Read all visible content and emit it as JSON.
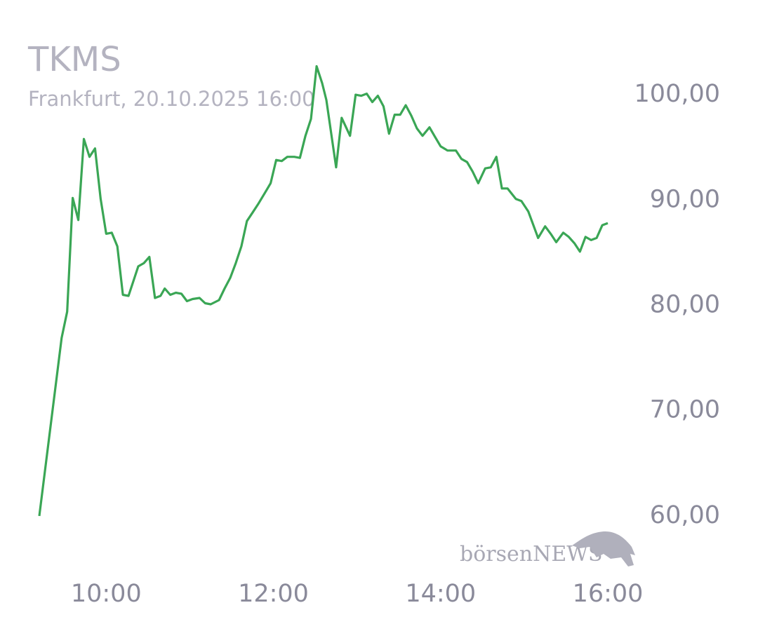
{
  "chart_data": {
    "type": "line",
    "title": "TKMS",
    "subtitle": "Frankfurt, 20.10.2025 16:00",
    "watermark": "börsenNEWS",
    "color": "#3aa655",
    "x": [
      "09:12",
      "09:28",
      "09:32",
      "09:36",
      "09:40",
      "09:44",
      "09:48",
      "09:52",
      "09:56",
      "10:00",
      "10:04",
      "10:08",
      "10:12",
      "10:16",
      "10:23",
      "10:27",
      "10:31",
      "10:35",
      "10:39",
      "10:42",
      "10:46",
      "10:50",
      "10:54",
      "10:58",
      "11:02",
      "11:07",
      "11:11",
      "11:15",
      "11:21",
      "11:25",
      "11:29",
      "11:33",
      "11:37",
      "11:41",
      "11:45",
      "11:49",
      "11:54",
      "11:58",
      "12:02",
      "12:06",
      "12:10",
      "12:15",
      "12:19",
      "12:23",
      "12:27",
      "12:31",
      "12:35",
      "12:38",
      "12:45",
      "12:49",
      "12:55",
      "12:59",
      "13:03",
      "13:07",
      "13:11",
      "13:15",
      "13:19",
      "13:23",
      "13:27",
      "13:31",
      "13:35",
      "13:39",
      "13:43",
      "13:47",
      "13:52",
      "13:56",
      "14:00",
      "14:05",
      "14:11",
      "14:15",
      "14:19",
      "14:23",
      "14:27",
      "14:32",
      "14:36",
      "14:40",
      "14:44",
      "14:48",
      "14:54",
      "14:58",
      "15:03",
      "15:10",
      "15:15",
      "15:19",
      "15:23",
      "15:28",
      "15:32",
      "15:36",
      "15:40",
      "15:44",
      "15:48",
      "15:52",
      "15:56",
      "16:00"
    ],
    "values": [
      60.0,
      76.9,
      79.4,
      90.2,
      88.1,
      95.8,
      94.1,
      94.9,
      90.1,
      86.8,
      86.9,
      85.6,
      81.0,
      80.9,
      83.7,
      84.0,
      84.6,
      80.7,
      80.9,
      81.6,
      81.0,
      81.2,
      81.1,
      80.4,
      80.6,
      80.7,
      80.2,
      80.1,
      80.5,
      81.6,
      82.6,
      84.0,
      85.6,
      88.0,
      88.8,
      89.6,
      90.7,
      91.6,
      93.8,
      93.7,
      94.1,
      94.1,
      94.0,
      96.1,
      97.7,
      102.7,
      101.1,
      99.5,
      93.1,
      97.8,
      96.1,
      100.0,
      99.9,
      100.1,
      99.3,
      99.9,
      98.9,
      96.3,
      98.1,
      98.1,
      99.0,
      98.0,
      96.8,
      96.1,
      96.9,
      96.0,
      95.1,
      94.7,
      94.7,
      93.9,
      93.6,
      92.7,
      91.6,
      93.0,
      93.1,
      94.1,
      91.1,
      91.1,
      90.1,
      89.9,
      88.9,
      86.4,
      87.5,
      86.8,
      86.0,
      86.9,
      86.5,
      85.9,
      85.1,
      86.5,
      86.2,
      86.4,
      87.6,
      87.8
    ],
    "xlim": [
      "09:12",
      "16:00"
    ],
    "xticks": [
      "10:00",
      "12:00",
      "14:00",
      "16:00"
    ],
    "ylim": [
      56,
      104
    ],
    "yticks": [
      {
        "value": 60,
        "label": "60,00"
      },
      {
        "value": 70,
        "label": "70,00"
      },
      {
        "value": 80,
        "label": "80,00"
      },
      {
        "value": 90,
        "label": "90,00"
      },
      {
        "value": 100,
        "label": "100,00"
      }
    ],
    "grid": false
  }
}
